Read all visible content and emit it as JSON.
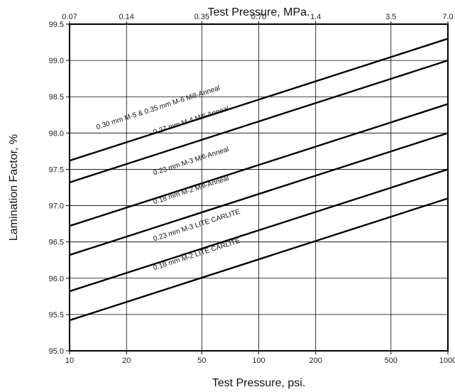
{
  "chart_data": {
    "type": "line",
    "top_xlabel": "Test Pressure, MPa.",
    "xlabel": "Test Pressure, psi.",
    "ylabel": "Lamination Factor, %",
    "x_scale": "log",
    "xlim": [
      10,
      1000
    ],
    "ylim": [
      95.0,
      99.5
    ],
    "grid": true,
    "x_ticks": [
      10,
      20,
      50,
      100,
      200,
      500,
      1000
    ],
    "x_tick_labels": [
      "10",
      "20",
      "50",
      "100",
      "200",
      "500",
      "1000"
    ],
    "top_ticks": [
      {
        "label": "0.07",
        "psi": 10
      },
      {
        "label": "0.14",
        "psi": 20
      },
      {
        "label": "0.35",
        "psi": 50
      },
      {
        "label": "0.70",
        "psi": 100
      },
      {
        "label": "1.4",
        "psi": 200
      },
      {
        "label": "3.5",
        "psi": 500
      },
      {
        "label": "7.0",
        "psi": 1000
      }
    ],
    "y_ticks": [
      95.0,
      95.5,
      96.0,
      96.5,
      97.0,
      97.5,
      98.0,
      98.5,
      99.0,
      99.5
    ],
    "y_tick_labels": [
      "95.0",
      "95.5",
      "96.0",
      "96.5",
      "97.0",
      "97.5",
      "98.0",
      "98.5",
      "99.0",
      "99.5"
    ],
    "series": [
      {
        "name": "0.30 mm M-5 & 0.35 mm M-6 Mill-Anneal",
        "x": [
          10,
          1000
        ],
        "y": [
          97.62,
          99.3
        ],
        "label_at": [
          14,
          98.05
        ]
      },
      {
        "name": "0.27 mm M-4 Mill-Anneal",
        "x": [
          10,
          1000
        ],
        "y": [
          97.32,
          99.0
        ],
        "label_at": [
          28,
          97.98
        ]
      },
      {
        "name": "0.23 mm M-3 Mill-Anneal",
        "x": [
          10,
          1000
        ],
        "y": [
          96.72,
          98.4
        ],
        "label_at": [
          28,
          97.42
        ]
      },
      {
        "name": "0.18 mm M-2 Mill-Anneal",
        "x": [
          10,
          1000
        ],
        "y": [
          96.32,
          98.0
        ],
        "label_at": [
          28,
          97.02
        ]
      },
      {
        "name": "0.23 mm M-3 LITE CARLITE",
        "x": [
          10,
          1000
        ],
        "y": [
          95.82,
          97.5
        ],
        "label_at": [
          28,
          96.51
        ]
      },
      {
        "name": "0.18 mm M-2 LITE CARLITE",
        "x": [
          10,
          1000
        ],
        "y": [
          95.42,
          97.1
        ],
        "label_at": [
          28,
          96.11
        ]
      }
    ]
  }
}
